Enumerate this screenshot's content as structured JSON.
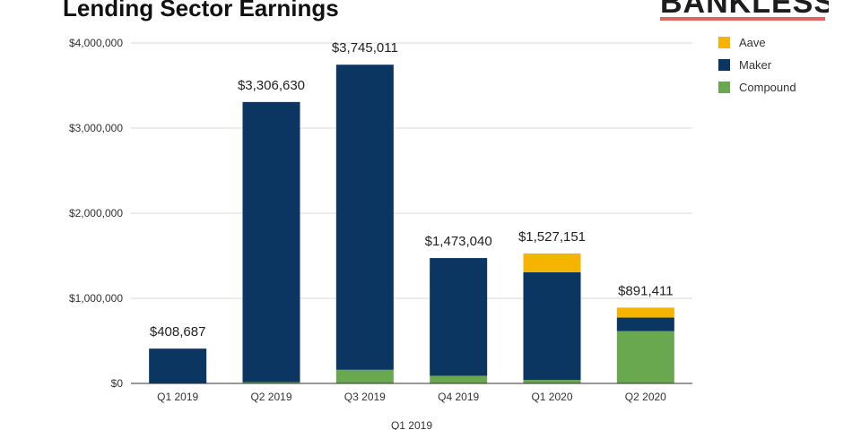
{
  "colors": {
    "aave": "#f4b400",
    "maker": "#0b3661",
    "compound": "#6aa84f",
    "grid": "#d9d9d9",
    "axis": "#333333",
    "brand_underline": "#e06666"
  },
  "logo": {
    "text": "BANKLESS"
  },
  "chart_data": {
    "type": "bar",
    "stacked": true,
    "title": "Lending Sector Earnings",
    "xlabel": "Q1 2019",
    "ylabel": "",
    "ylim": [
      0,
      4000000
    ],
    "yticks": [
      0,
      1000000,
      2000000,
      3000000,
      4000000
    ],
    "ytick_labels": [
      "$0",
      "$1,000,000",
      "$2,000,000",
      "$3,000,000",
      "$4,000,000"
    ],
    "grid": true,
    "legend_position": "top-right",
    "categories": [
      "Q1 2019",
      "Q2 2019",
      "Q3 2019",
      "Q4 2019",
      "Q1 2020",
      "Q2 2020"
    ],
    "series": [
      {
        "name": "Compound",
        "values": [
          0,
          15000,
          160000,
          90000,
          40000,
          615000
        ]
      },
      {
        "name": "Maker",
        "values": [
          408687,
          3291630,
          3585011,
          1383040,
          1267151,
          158411
        ]
      },
      {
        "name": "Aave",
        "values": [
          0,
          0,
          0,
          0,
          220000,
          118000
        ]
      }
    ],
    "legend_order": [
      "Aave",
      "Maker",
      "Compound"
    ],
    "totals": [
      408687,
      3306630,
      3745011,
      1473040,
      1527151,
      891411
    ],
    "total_labels": [
      "$408,687",
      "$3,306,630",
      "$3,745,011",
      "$1,473,040",
      "$1,527,151",
      "$891,411"
    ]
  }
}
